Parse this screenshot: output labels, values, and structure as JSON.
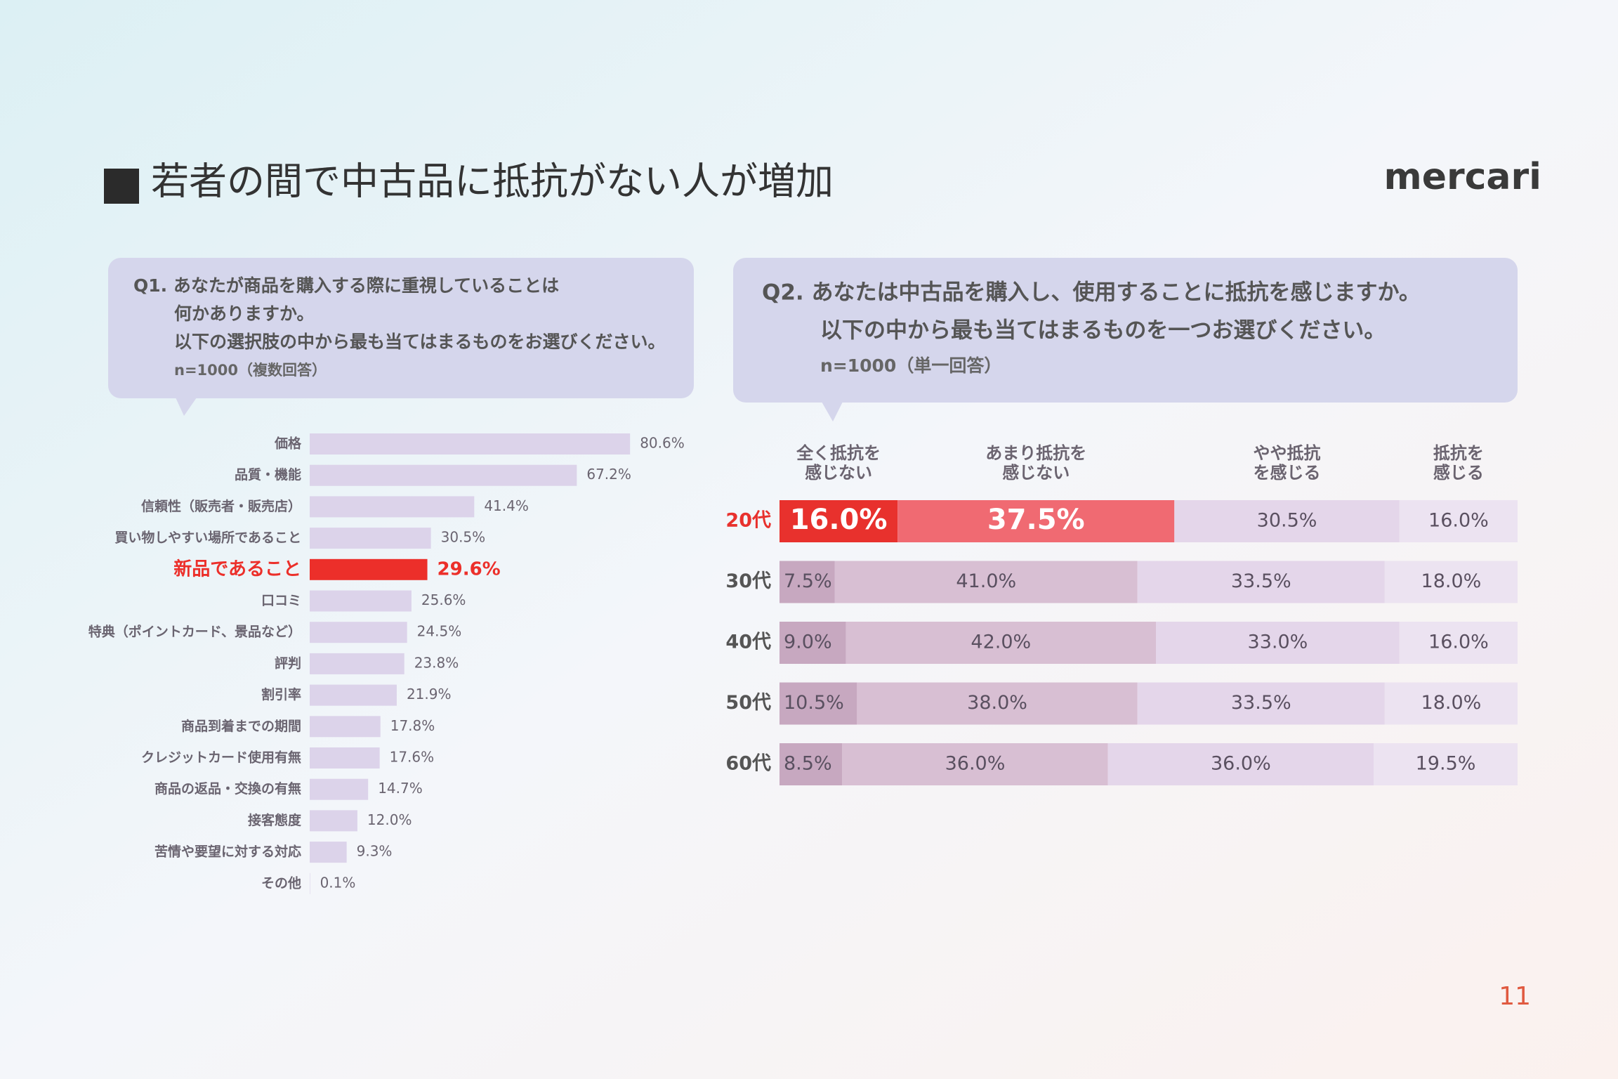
{
  "title": "若者の間で中古品に抵抗がない人が増加",
  "logo": "mercari",
  "page_number": "11",
  "chart_data": [
    {
      "type": "hbar",
      "question": [
        "Q1. あなたが商品を購入する際に重視していることは",
        "何かありますか。",
        "以下の選択肢の中から最も当てはまるものをお選びください。"
      ],
      "note": "n=1000（複数回答）",
      "categories": [
        "価格",
        "品質・機能",
        "信頼性（販売者・販売店）",
        "買い物しやすい場所であること",
        "新品であること",
        "口コミ",
        "特典（ポイントカード、景品など）",
        "評判",
        "割引率",
        "商品到着までの期間",
        "クレジットカード使用有無",
        "商品の返品・交換の有無",
        "接客態度",
        "苦情や要望に対する対応",
        "その他"
      ],
      "values": [
        80.6,
        67.2,
        41.4,
        30.5,
        29.6,
        25.6,
        24.5,
        23.8,
        21.9,
        17.8,
        17.6,
        14.7,
        12.0,
        9.3,
        0.1
      ],
      "value_labels": [
        "80.6%",
        "67.2%",
        "41.4%",
        "30.5%",
        "29.6%",
        "25.6%",
        "24.5%",
        "23.8%",
        "21.9%",
        "17.8%",
        "17.6%",
        "14.7%",
        "12.0%",
        "9.3%",
        "0.1%"
      ],
      "color": "#dcd3ea",
      "highlight_index": 4,
      "highlight_color": "#ec2f2a"
    },
    {
      "type": "stacked_hbar",
      "question": [
        "Q2. あなたは中古品を購入し、使用することに抵抗を感じますか。",
        "以下の中から最も当てはまるものを一つお選びください。"
      ],
      "note": "n=1000（単一回答）",
      "categories": [
        "20代",
        "30代",
        "40代",
        "50代",
        "60代"
      ],
      "series": [
        {
          "name": "全く抵抗を感じない",
          "color": "#c7a8c0",
          "values": [
            16.0,
            7.5,
            9.0,
            10.5,
            8.5
          ],
          "value_labels": [
            "16.0%",
            "7.5%",
            "9.0%",
            "10.5%",
            "8.5%"
          ]
        },
        {
          "name": "あまり抵抗を感じない",
          "color": "#d8bfd3",
          "values": [
            37.5,
            41.0,
            42.0,
            38.0,
            36.0
          ],
          "value_labels": [
            "37.5%",
            "41.0%",
            "42.0%",
            "38.0%",
            "36.0%"
          ]
        },
        {
          "name": "やや抵抗を感じる",
          "color": "#e4d6ea",
          "values": [
            30.5,
            33.5,
            33.0,
            33.5,
            36.0
          ],
          "value_labels": [
            "30.5%",
            "33.5%",
            "33.0%",
            "33.5%",
            "36.0%"
          ]
        },
        {
          "name": "抵抗を感じる",
          "color": "#ece3f1",
          "values": [
            16.0,
            18.0,
            16.0,
            18.0,
            19.5
          ],
          "value_labels": [
            "16.0%",
            "18.0%",
            "16.0%",
            "18.0%",
            "19.5%"
          ]
        }
      ],
      "highlight_index": 0,
      "highlight_colors": [
        "#e8312d",
        "#f06a72"
      ]
    }
  ]
}
